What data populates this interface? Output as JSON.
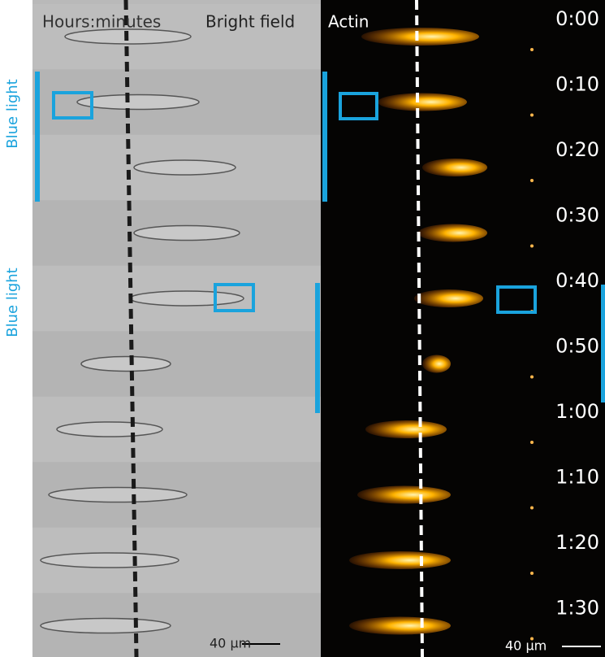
{
  "header": {
    "time_label": "Hours:minutes",
    "bright_field": "Bright field",
    "actin": "Actin"
  },
  "side_labels": [
    "Blue light",
    "Blue light"
  ],
  "times": [
    "0:00",
    "0:10",
    "0:20",
    "0:30",
    "0:40",
    "0:50",
    "1:00",
    "1:10",
    "1:20",
    "1:30"
  ],
  "scale_bars": [
    "40 µm",
    "40 µm"
  ]
}
